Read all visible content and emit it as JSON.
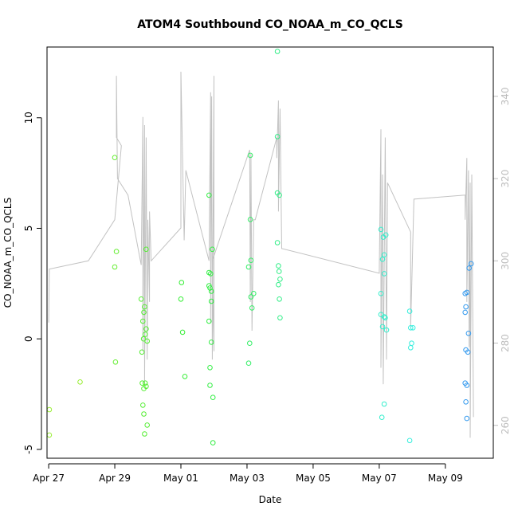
{
  "chart_data": {
    "type": "scatter",
    "title": "ATOM4 Southbound CO_NOAA_m_CO_QCLS",
    "xlabel": "Date",
    "ylabel": "CO_NOAA_m_CO_QCLS",
    "xlim": [
      -0.05,
      13.45
    ],
    "ylim": [
      -5.4,
      13.2
    ],
    "x_ticks": [
      {
        "value": 0,
        "label": "Apr 27"
      },
      {
        "value": 2,
        "label": "Apr 29"
      },
      {
        "value": 4,
        "label": "May 01"
      },
      {
        "value": 6,
        "label": "May 03"
      },
      {
        "value": 8,
        "label": "May 05"
      },
      {
        "value": 10,
        "label": "May 07"
      },
      {
        "value": 12,
        "label": "May 09"
      }
    ],
    "y_ticks": [
      {
        "value": -5,
        "label": "-5"
      },
      {
        "value": 0,
        "label": "0"
      },
      {
        "value": 5,
        "label": "5"
      },
      {
        "value": 10,
        "label": "10"
      }
    ],
    "right_axis": {
      "color": "#bdbdbd",
      "ylim": [
        252,
        352
      ],
      "ticks": [
        {
          "value": 260,
          "label": "260"
        },
        {
          "value": 280,
          "label": "280"
        },
        {
          "value": 300,
          "label": "300"
        },
        {
          "value": 320,
          "label": "320"
        },
        {
          "value": 340,
          "label": "340"
        }
      ]
    },
    "points": [
      {
        "x": 0.02,
        "y": -3.2,
        "color": "#99ee33"
      },
      {
        "x": 0.02,
        "y": -4.35,
        "color": "#99ee33"
      },
      {
        "x": 0.95,
        "y": -1.95,
        "color": "#99ee33"
      },
      {
        "x": 2.0,
        "y": 8.2,
        "color": "#66ee33"
      },
      {
        "x": 2.05,
        "y": 3.95,
        "color": "#66ee33"
      },
      {
        "x": 2.0,
        "y": 3.25,
        "color": "#66ee33"
      },
      {
        "x": 2.02,
        "y": -1.05,
        "color": "#66ee33"
      },
      {
        "x": 2.8,
        "y": 1.8,
        "color": "#55ee33"
      },
      {
        "x": 2.85,
        "y": 0.8,
        "color": "#55ee33"
      },
      {
        "x": 2.88,
        "y": 1.2,
        "color": "#55ee33"
      },
      {
        "x": 2.9,
        "y": 1.45,
        "color": "#55ee33"
      },
      {
        "x": 2.82,
        "y": -0.6,
        "color": "#55ee33"
      },
      {
        "x": 2.87,
        "y": 0.0,
        "color": "#55ee33"
      },
      {
        "x": 2.92,
        "y": 0.2,
        "color": "#55ee33"
      },
      {
        "x": 2.95,
        "y": 0.45,
        "color": "#55ee33"
      },
      {
        "x": 2.98,
        "y": -0.1,
        "color": "#55ee33"
      },
      {
        "x": 2.95,
        "y": 4.05,
        "color": "#55ee33"
      },
      {
        "x": 2.83,
        "y": -2.0,
        "color": "#55ee33"
      },
      {
        "x": 2.88,
        "y": -2.25,
        "color": "#55ee33"
      },
      {
        "x": 2.92,
        "y": -2.0,
        "color": "#55ee33"
      },
      {
        "x": 2.95,
        "y": -2.15,
        "color": "#55ee33"
      },
      {
        "x": 2.85,
        "y": -3.0,
        "color": "#55ee33"
      },
      {
        "x": 2.88,
        "y": -3.4,
        "color": "#55ee33"
      },
      {
        "x": 2.98,
        "y": -3.9,
        "color": "#55ee33"
      },
      {
        "x": 2.9,
        "y": -4.3,
        "color": "#55ee33"
      },
      {
        "x": 4.02,
        "y": 2.55,
        "color": "#33ee33"
      },
      {
        "x": 4.0,
        "y": 1.8,
        "color": "#33ee33"
      },
      {
        "x": 4.05,
        "y": 0.3,
        "color": "#33ee33"
      },
      {
        "x": 4.12,
        "y": -1.7,
        "color": "#33ee33"
      },
      {
        "x": 4.85,
        "y": 6.5,
        "color": "#33ee44"
      },
      {
        "x": 4.95,
        "y": 4.05,
        "color": "#33ee44"
      },
      {
        "x": 4.85,
        "y": 3.0,
        "color": "#33ee44"
      },
      {
        "x": 4.9,
        "y": 2.95,
        "color": "#33ee44"
      },
      {
        "x": 4.85,
        "y": 2.4,
        "color": "#33ee44"
      },
      {
        "x": 4.88,
        "y": 2.3,
        "color": "#33ee44"
      },
      {
        "x": 4.92,
        "y": 2.15,
        "color": "#33ee44"
      },
      {
        "x": 4.92,
        "y": 1.7,
        "color": "#33ee44"
      },
      {
        "x": 4.85,
        "y": 0.8,
        "color": "#33ee44"
      },
      {
        "x": 4.92,
        "y": -0.15,
        "color": "#33ee44"
      },
      {
        "x": 4.88,
        "y": -1.3,
        "color": "#33ee44"
      },
      {
        "x": 4.88,
        "y": -2.1,
        "color": "#33ee44"
      },
      {
        "x": 4.97,
        "y": -2.65,
        "color": "#33ee44"
      },
      {
        "x": 4.97,
        "y": -4.7,
        "color": "#33ee44"
      },
      {
        "x": 6.1,
        "y": 8.3,
        "color": "#33ee66"
      },
      {
        "x": 6.1,
        "y": 5.4,
        "color": "#33ee66"
      },
      {
        "x": 6.12,
        "y": 3.55,
        "color": "#33ee66"
      },
      {
        "x": 6.05,
        "y": 3.25,
        "color": "#33ee66"
      },
      {
        "x": 6.2,
        "y": 2.05,
        "color": "#33ee66"
      },
      {
        "x": 6.12,
        "y": 1.9,
        "color": "#33ee66"
      },
      {
        "x": 6.15,
        "y": 1.4,
        "color": "#33ee66"
      },
      {
        "x": 6.08,
        "y": -0.2,
        "color": "#33ee66"
      },
      {
        "x": 6.05,
        "y": -1.1,
        "color": "#33ee66"
      },
      {
        "x": 6.92,
        "y": 13.0,
        "color": "#33ee88"
      },
      {
        "x": 6.92,
        "y": 9.15,
        "color": "#33ee88"
      },
      {
        "x": 6.92,
        "y": 6.6,
        "color": "#33ee88"
      },
      {
        "x": 6.98,
        "y": 6.5,
        "color": "#33ee88"
      },
      {
        "x": 6.92,
        "y": 4.35,
        "color": "#33ee88"
      },
      {
        "x": 6.95,
        "y": 3.3,
        "color": "#33ee88"
      },
      {
        "x": 6.97,
        "y": 3.05,
        "color": "#33ee88"
      },
      {
        "x": 7.0,
        "y": 2.7,
        "color": "#33ee88"
      },
      {
        "x": 6.95,
        "y": 2.45,
        "color": "#33ee88"
      },
      {
        "x": 6.98,
        "y": 1.8,
        "color": "#33ee88"
      },
      {
        "x": 7.0,
        "y": 0.95,
        "color": "#33ee88"
      },
      {
        "x": 10.05,
        "y": 4.95,
        "color": "#33eecc"
      },
      {
        "x": 10.12,
        "y": 4.6,
        "color": "#33eecc"
      },
      {
        "x": 10.2,
        "y": 4.7,
        "color": "#33eecc"
      },
      {
        "x": 10.15,
        "y": 3.8,
        "color": "#33eecc"
      },
      {
        "x": 10.1,
        "y": 3.6,
        "color": "#33eecc"
      },
      {
        "x": 10.15,
        "y": 2.95,
        "color": "#33eecc"
      },
      {
        "x": 10.05,
        "y": 2.05,
        "color": "#33eecc"
      },
      {
        "x": 10.05,
        "y": 1.1,
        "color": "#33eecc"
      },
      {
        "x": 10.15,
        "y": 1.0,
        "color": "#33eecc"
      },
      {
        "x": 10.18,
        "y": 0.95,
        "color": "#33eecc"
      },
      {
        "x": 10.1,
        "y": 0.55,
        "color": "#33eecc"
      },
      {
        "x": 10.22,
        "y": 0.4,
        "color": "#33eecc"
      },
      {
        "x": 10.15,
        "y": -2.95,
        "color": "#33eecc"
      },
      {
        "x": 10.08,
        "y": -3.55,
        "color": "#33eecc"
      },
      {
        "x": 10.92,
        "y": 1.25,
        "color": "#33eedd"
      },
      {
        "x": 10.95,
        "y": 0.5,
        "color": "#33eedd"
      },
      {
        "x": 11.02,
        "y": 0.5,
        "color": "#33eedd"
      },
      {
        "x": 10.98,
        "y": -0.2,
        "color": "#33eedd"
      },
      {
        "x": 10.95,
        "y": -0.4,
        "color": "#33eedd"
      },
      {
        "x": 10.92,
        "y": -4.6,
        "color": "#33eedd"
      },
      {
        "x": 12.6,
        "y": 2.05,
        "color": "#3399ee"
      },
      {
        "x": 12.65,
        "y": 2.1,
        "color": "#3399ee"
      },
      {
        "x": 12.62,
        "y": 1.45,
        "color": "#3399ee"
      },
      {
        "x": 12.6,
        "y": 1.2,
        "color": "#3399ee"
      },
      {
        "x": 12.72,
        "y": 3.2,
        "color": "#3399ee"
      },
      {
        "x": 12.78,
        "y": 3.4,
        "color": "#3399ee"
      },
      {
        "x": 12.7,
        "y": 0.25,
        "color": "#3399ee"
      },
      {
        "x": 12.62,
        "y": -0.5,
        "color": "#3399ee"
      },
      {
        "x": 12.68,
        "y": -0.6,
        "color": "#3399ee"
      },
      {
        "x": 12.6,
        "y": -2.0,
        "color": "#3399ee"
      },
      {
        "x": 12.65,
        "y": -2.1,
        "color": "#3399ee"
      },
      {
        "x": 12.62,
        "y": -2.85,
        "color": "#3399ee"
      },
      {
        "x": 12.65,
        "y": -3.6,
        "color": "#3399ee"
      }
    ],
    "overlay_line": {
      "color": "#c2c2c2",
      "axis": "right",
      "points": [
        [
          0.0,
          285
        ],
        [
          0.02,
          298
        ],
        [
          1.2,
          300
        ],
        [
          2.0,
          310
        ],
        [
          2.2,
          328
        ],
        [
          2.05,
          330
        ],
        [
          2.05,
          345
        ],
        [
          2.08,
          320
        ],
        [
          2.4,
          316
        ],
        [
          2.8,
          299
        ],
        [
          2.85,
          335
        ],
        [
          2.85,
          278
        ],
        [
          2.9,
          333
        ],
        [
          2.9,
          270
        ],
        [
          2.95,
          330
        ],
        [
          2.98,
          276
        ],
        [
          3.0,
          310
        ],
        [
          3.05,
          290
        ],
        [
          3.05,
          312
        ],
        [
          3.1,
          300
        ],
        [
          4.0,
          308
        ],
        [
          4.0,
          346
        ],
        [
          4.1,
          305
        ],
        [
          4.15,
          322
        ],
        [
          4.85,
          300
        ],
        [
          4.9,
          341
        ],
        [
          4.9,
          285
        ],
        [
          4.93,
          340
        ],
        [
          4.95,
          276
        ],
        [
          5.0,
          345
        ],
        [
          5.0,
          278
        ],
        [
          4.95,
          300
        ],
        [
          6.08,
          327
        ],
        [
          6.1,
          290
        ],
        [
          6.12,
          326
        ],
        [
          6.15,
          283
        ],
        [
          6.2,
          310
        ],
        [
          6.25,
          310
        ],
        [
          6.9,
          330
        ],
        [
          6.9,
          325
        ],
        [
          6.95,
          339
        ],
        [
          6.95,
          312
        ],
        [
          7.0,
          337
        ],
        [
          7.05,
          303
        ],
        [
          10.0,
          297
        ],
        [
          10.05,
          332
        ],
        [
          10.05,
          274
        ],
        [
          10.1,
          321
        ],
        [
          10.12,
          270
        ],
        [
          10.18,
          330
        ],
        [
          10.22,
          276
        ],
        [
          10.25,
          319
        ],
        [
          10.95,
          307
        ],
        [
          10.95,
          284
        ],
        [
          11.05,
          315
        ],
        [
          12.6,
          316
        ],
        [
          12.6,
          310
        ],
        [
          12.65,
          325
        ],
        [
          12.65,
          290
        ],
        [
          12.7,
          322
        ],
        [
          12.72,
          279
        ],
        [
          12.75,
          319
        ],
        [
          12.75,
          257
        ],
        [
          12.8,
          321
        ],
        [
          12.85,
          262
        ]
      ]
    }
  }
}
